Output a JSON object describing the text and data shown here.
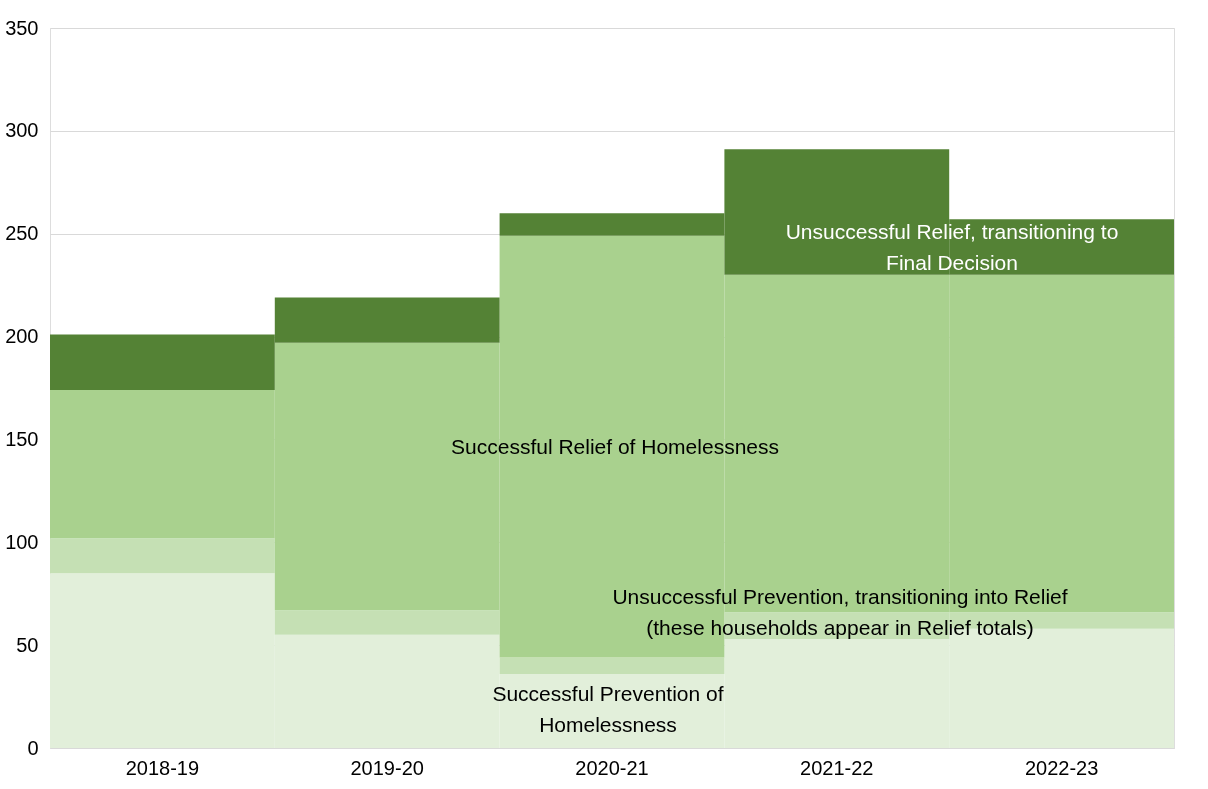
{
  "chart_data": {
    "type": "bar",
    "stacked": true,
    "categories": [
      "2018-19",
      "2019-20",
      "2020-21",
      "2021-22",
      "2022-23"
    ],
    "series": [
      {
        "name": "Successful Prevention of Homelessness",
        "color": "#e2efda",
        "values": [
          85,
          55,
          36,
          53,
          58
        ]
      },
      {
        "name": "Unsuccessful Prevention, transitioning into Relief (these households appear in Relief totals)",
        "color": "#c5e0b4",
        "values": [
          17,
          12,
          8,
          13,
          8
        ]
      },
      {
        "name": "Successful Relief of Homelessness",
        "color": "#a9d18e",
        "values": [
          72,
          130,
          205,
          164,
          164
        ]
      },
      {
        "name": "Unsuccessful Relief, transitioning to Final Decision",
        "color": "#548235",
        "values": [
          27,
          22,
          11,
          61,
          27
        ]
      }
    ],
    "ylim": [
      0,
      350
    ],
    "yticks": [
      0,
      50,
      100,
      150,
      200,
      250,
      300,
      350
    ],
    "grid": "y"
  }
}
